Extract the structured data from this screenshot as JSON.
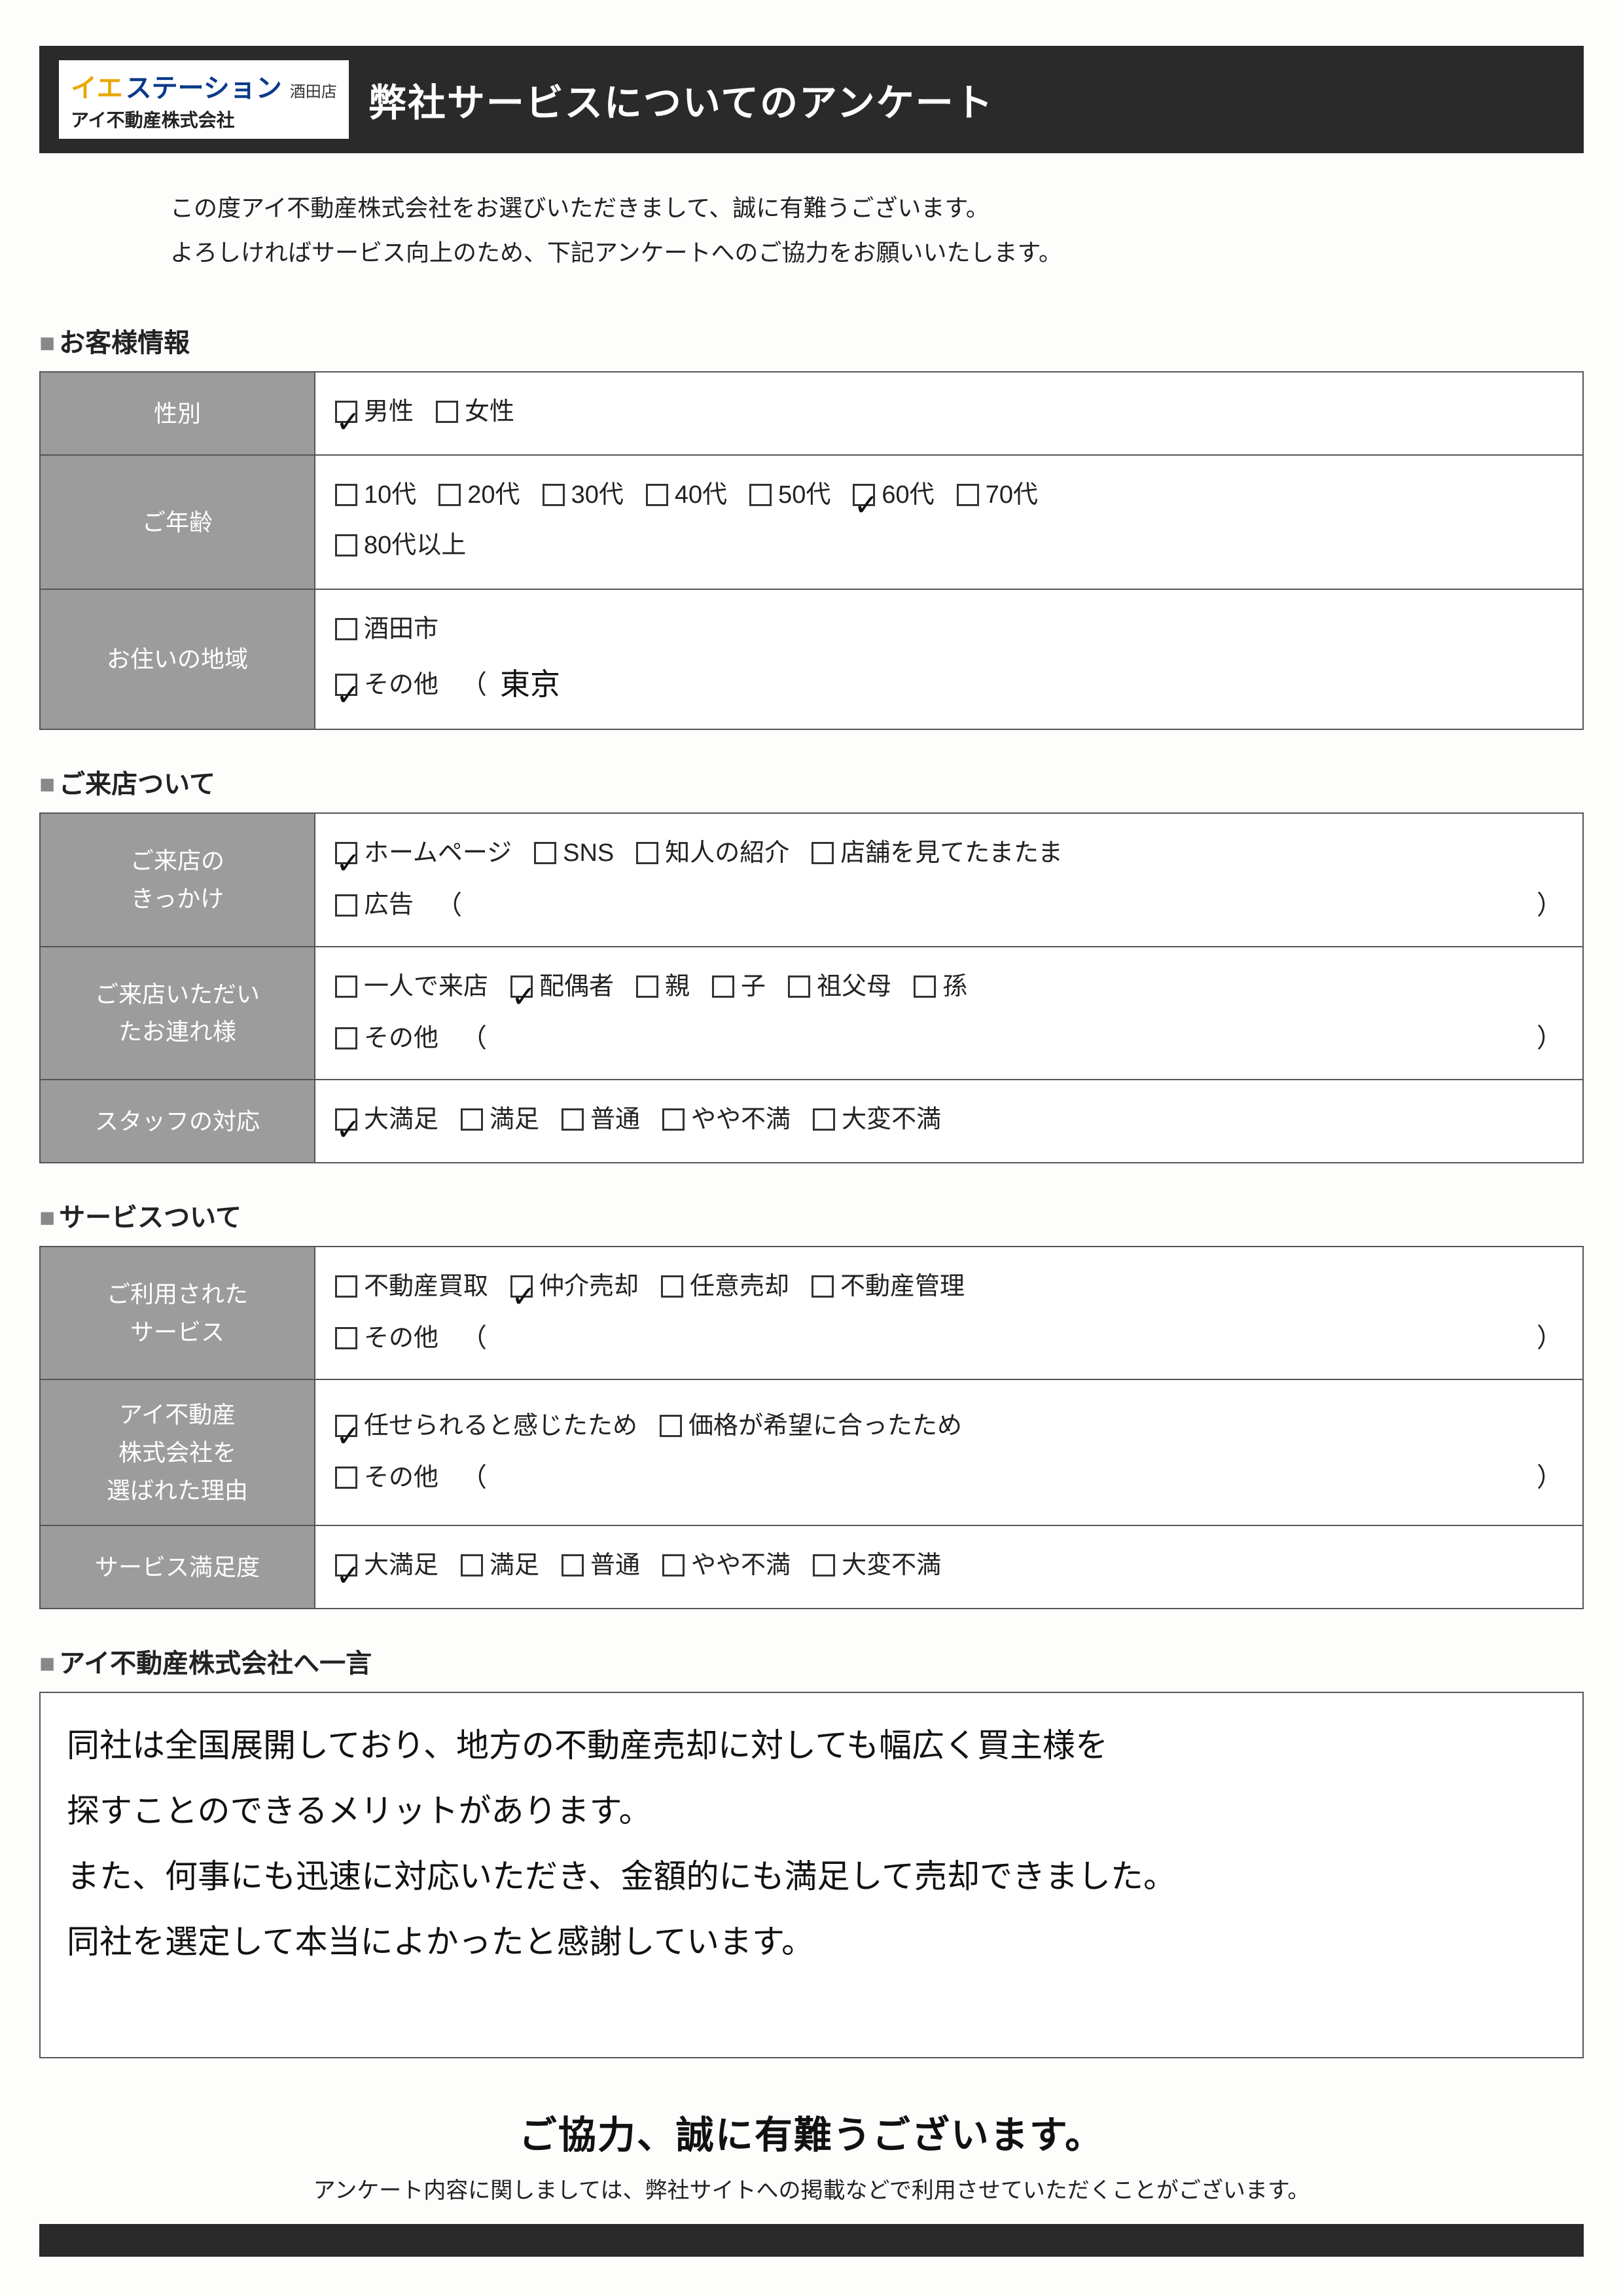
{
  "colors": {
    "header_bg": "#2a2a2a",
    "label_bg": "#9c9c9c",
    "label_fg": "#ffffff",
    "border": "#555555",
    "text": "#222222",
    "logo_yellow": "#e8a800",
    "logo_blue": "#0a3a8a",
    "page_bg": "#fdfdfc"
  },
  "logo": {
    "brand_prefix": "イエ",
    "brand_suffix": "ステーション",
    "branch": "酒田店",
    "company": "アイ不動産株式会社"
  },
  "header_title": "弊社サービスについてのアンケート",
  "intro_line1": "この度アイ不動産株式会社をお選びいただきまして、誠に有難うございます。",
  "intro_line2": "よろしければサービス向上のため、下記アンケートへのご協力をお願いいたします。",
  "sections": {
    "customer": "お客様情報",
    "visit": "ご来店ついて",
    "service": "サービスついて",
    "message": "アイ不動産株式会社へ一言"
  },
  "rows": {
    "gender": {
      "label": "性別",
      "options": [
        {
          "text": "男性",
          "checked": true
        },
        {
          "text": "女性",
          "checked": false
        }
      ]
    },
    "age": {
      "label": "ご年齢",
      "options": [
        {
          "text": "10代",
          "checked": false
        },
        {
          "text": "20代",
          "checked": false
        },
        {
          "text": "30代",
          "checked": false
        },
        {
          "text": "40代",
          "checked": false
        },
        {
          "text": "50代",
          "checked": false
        },
        {
          "text": "60代",
          "checked": true
        },
        {
          "text": "70代",
          "checked": false
        },
        {
          "text": "80代以上",
          "checked": false
        }
      ]
    },
    "region": {
      "label": "お住いの地域",
      "options": [
        {
          "text": "酒田市",
          "checked": false
        },
        {
          "text": "その他",
          "checked": true
        }
      ],
      "other_written": "東京"
    },
    "trigger": {
      "label": "ご来店の\nきっかけ",
      "options": [
        {
          "text": "ホームページ",
          "checked": true
        },
        {
          "text": "SNS",
          "checked": false
        },
        {
          "text": "知人の紹介",
          "checked": false
        },
        {
          "text": "店舗を見てたまたま",
          "checked": false
        },
        {
          "text": "広告",
          "checked": false
        }
      ]
    },
    "companion": {
      "label": "ご来店いただい\nたお連れ様",
      "options": [
        {
          "text": "一人で来店",
          "checked": false
        },
        {
          "text": "配偶者",
          "checked": true
        },
        {
          "text": "親",
          "checked": false
        },
        {
          "text": "子",
          "checked": false
        },
        {
          "text": "祖父母",
          "checked": false
        },
        {
          "text": "孫",
          "checked": false
        },
        {
          "text": "その他",
          "checked": false
        }
      ]
    },
    "staff": {
      "label": "スタッフの対応",
      "options": [
        {
          "text": "大満足",
          "checked": true
        },
        {
          "text": "満足",
          "checked": false
        },
        {
          "text": "普通",
          "checked": false
        },
        {
          "text": "やや不満",
          "checked": false
        },
        {
          "text": "大変不満",
          "checked": false
        }
      ]
    },
    "used": {
      "label": "ご利用された\nサービス",
      "options": [
        {
          "text": "不動産買取",
          "checked": false
        },
        {
          "text": "仲介売却",
          "checked": true
        },
        {
          "text": "任意売却",
          "checked": false
        },
        {
          "text": "不動産管理",
          "checked": false
        },
        {
          "text": "その他",
          "checked": false
        }
      ]
    },
    "reason": {
      "label": "アイ不動産\n株式会社を\n選ばれた理由",
      "options": [
        {
          "text": "任せられると感じたため",
          "checked": true
        },
        {
          "text": "価格が希望に合ったため",
          "checked": false
        },
        {
          "text": "その他",
          "checked": false
        }
      ]
    },
    "satisfaction": {
      "label": "サービス満足度",
      "options": [
        {
          "text": "大満足",
          "checked": true
        },
        {
          "text": "満足",
          "checked": false
        },
        {
          "text": "普通",
          "checked": false
        },
        {
          "text": "やや不満",
          "checked": false
        },
        {
          "text": "大変不満",
          "checked": false
        }
      ]
    }
  },
  "freeform": {
    "line1": "同社は全国展開しており、地方の不動産売却に対しても幅広く買主様を",
    "line2": "探すことのできるメリットがあります。",
    "line3": "また、何事にも迅速に対応いただき、金額的にも満足して売却できました。",
    "line4": "同社を選定して本当によかったと感謝しています。"
  },
  "thanks": "ご協力、誠に有難うございます。",
  "footnote": "アンケート内容に関しましては、弊社サイトへの掲載などで利用させていただくことがございます。"
}
